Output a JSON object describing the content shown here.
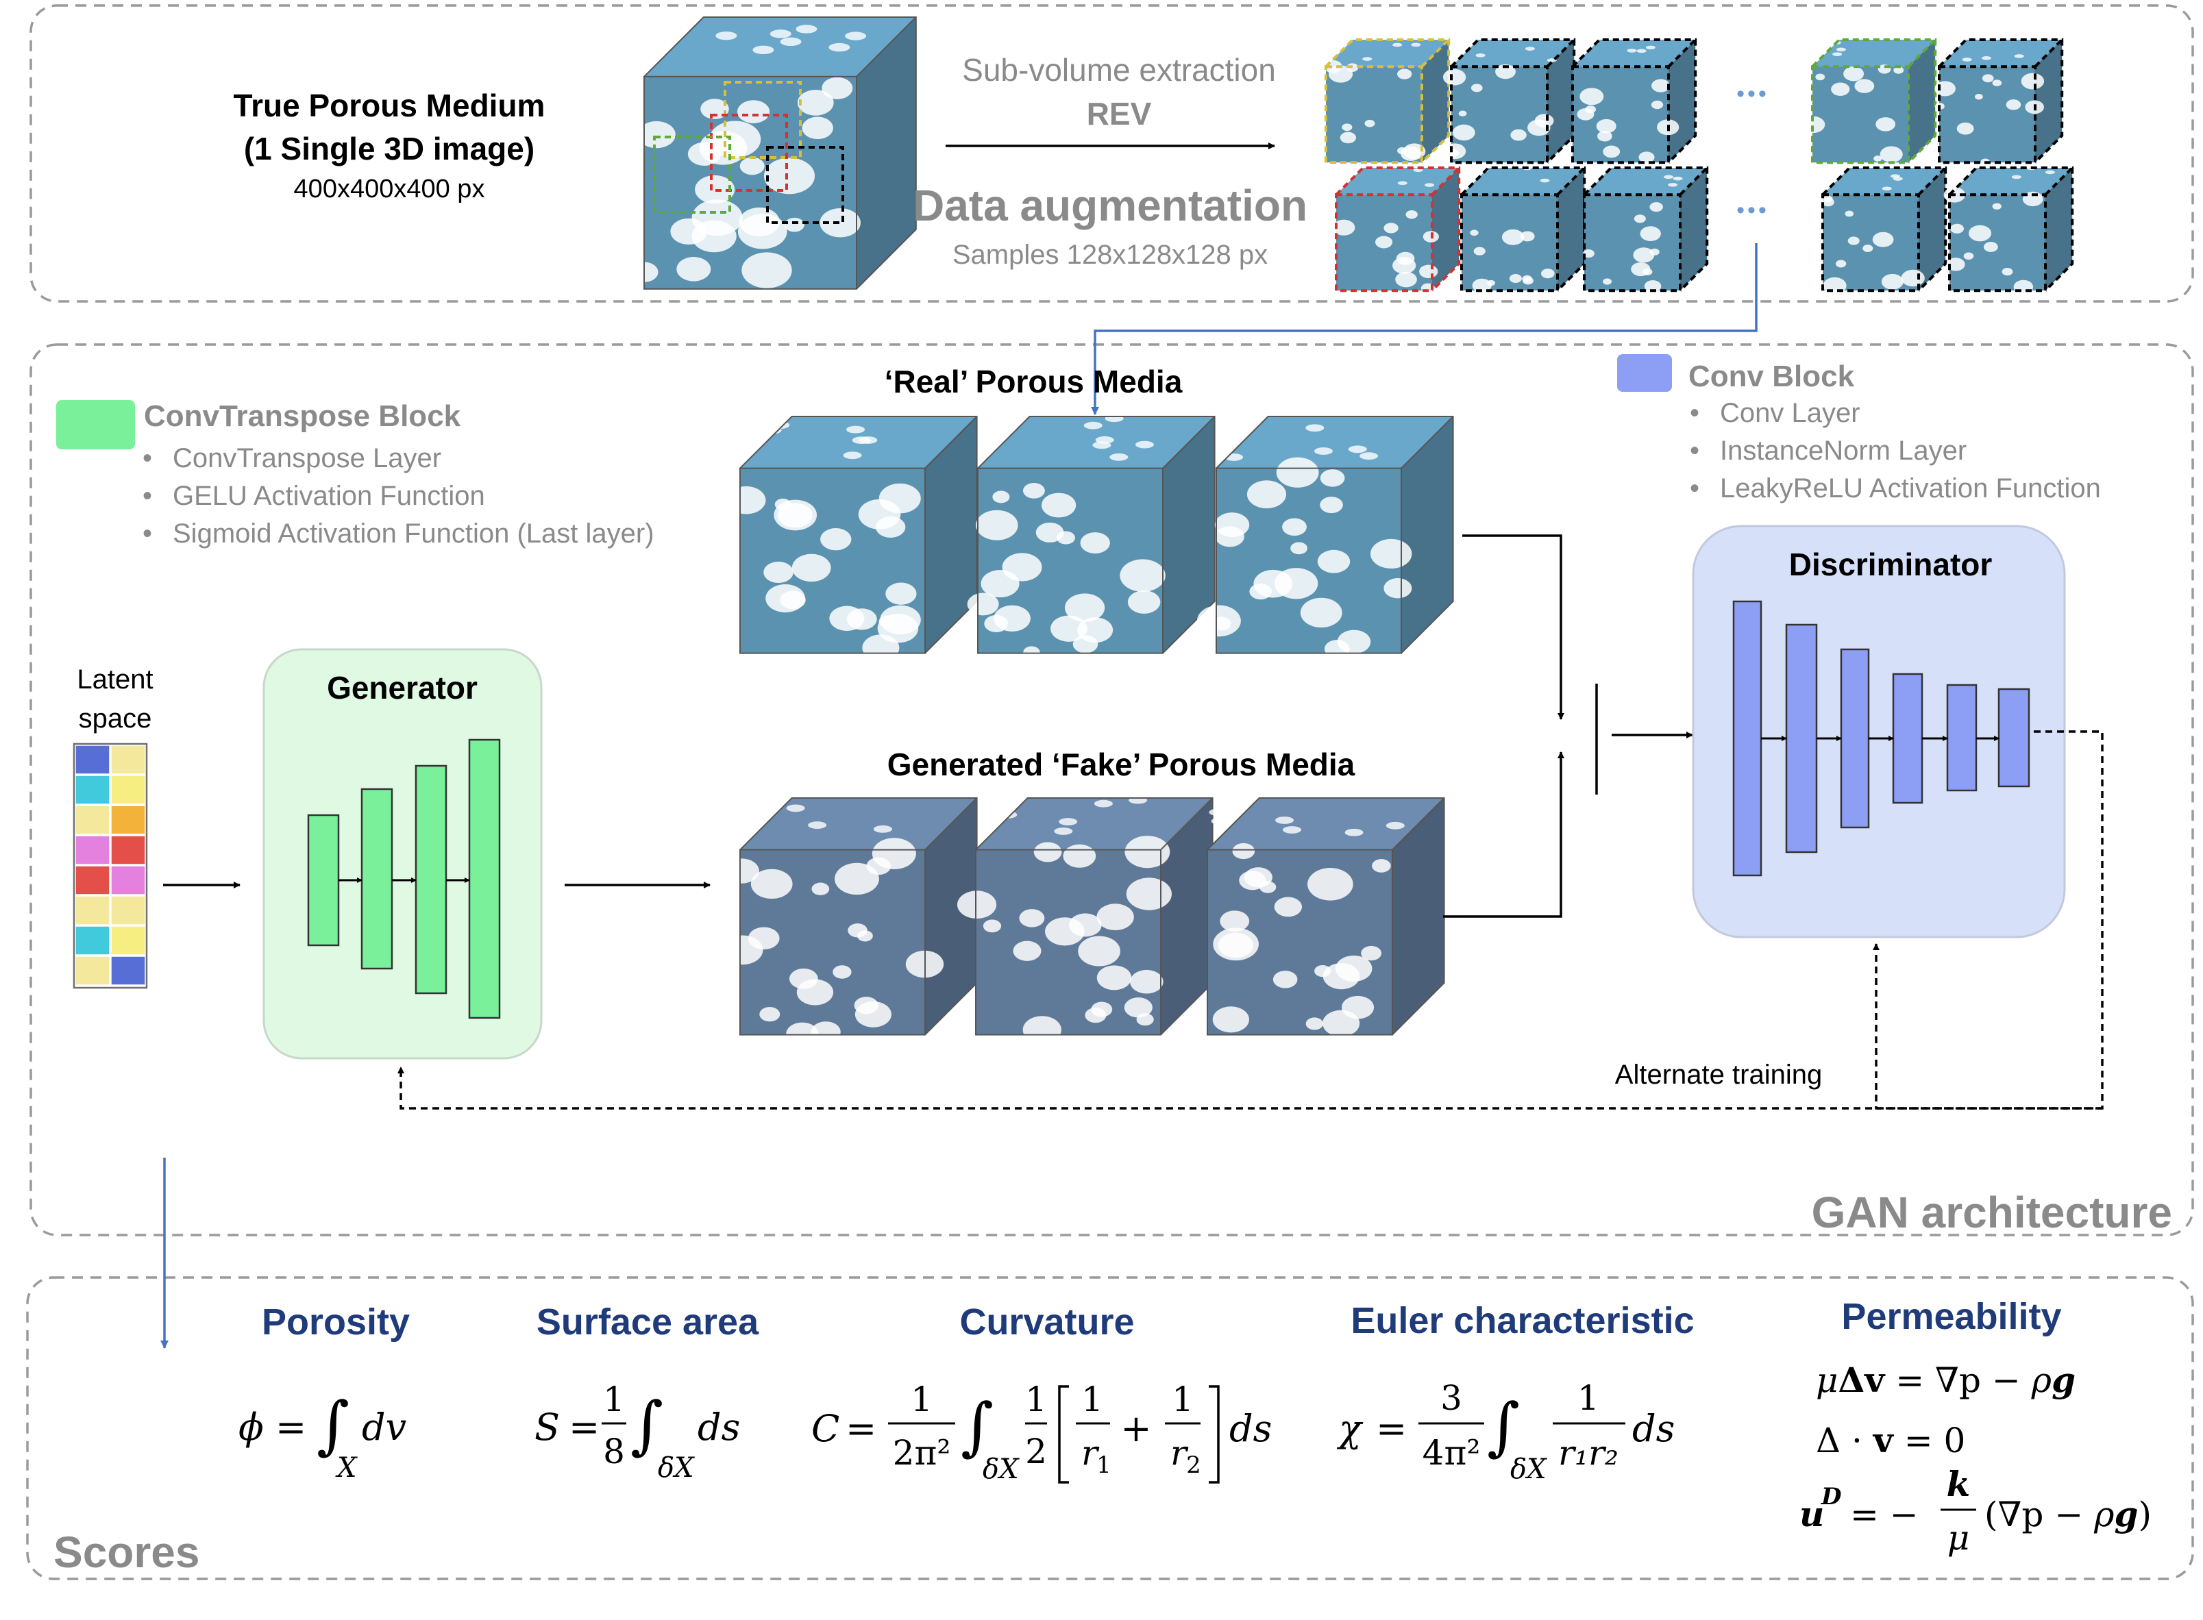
{
  "top": {
    "title_line1": "True Porous Medium",
    "title_line2": "(1 Single 3D image)",
    "title_size": "400x400x400  px",
    "extraction": "Sub-volume extraction",
    "rev": "REV",
    "augmentation": "Data augmentation",
    "samples": "Samples 128x128x128  px",
    "ellipsis": "•••"
  },
  "gan": {
    "real_label": "‘Real’ Porous Media",
    "fake_label": "Generated ‘Fake’ Porous Media",
    "convtranspose_title": "ConvTranspose Block",
    "convtranspose_items": [
      "ConvTranspose  Layer",
      "GELU Activation Function",
      "Sigmoid Activation Function (Last layer)"
    ],
    "conv_title": "Conv Block",
    "conv_items": [
      "Conv  Layer",
      "InstanceNorm Layer",
      "LeakyReLU Activation Function"
    ],
    "latent_line1": "Latent",
    "latent_line2": "space",
    "generator": "Generator",
    "discriminator": "Discriminator",
    "alternate": "Alternate training",
    "section_label": "GAN architecture"
  },
  "scores": {
    "section_label": "Scores",
    "headings": [
      "Porosity",
      "Surface area",
      "Curvature",
      "Euler characteristic",
      "Permeability"
    ]
  },
  "colors": {
    "green_block": "#7af09a",
    "blue_block": "#8d9ef5",
    "pore_real": "#5b92b0",
    "pore_fake": "#5f7a98",
    "navy_heading": "#1f3b7a",
    "arrow_blue": "#4472c4"
  }
}
